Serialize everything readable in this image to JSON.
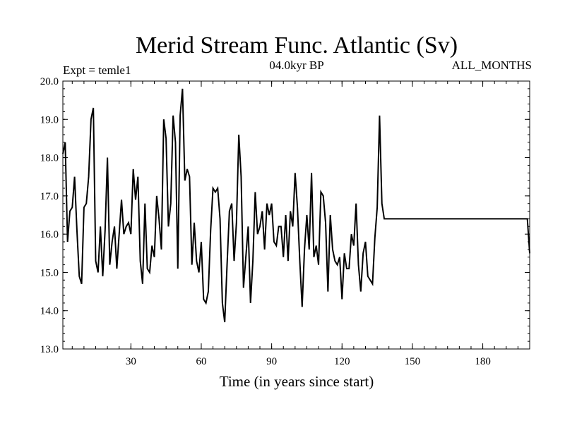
{
  "chart_data": {
    "type": "line",
    "title": "Merid Stream Func. Atlantic (Sv)",
    "subtitle_left": "Expt = temle1",
    "subtitle_center": "04.0kyr BP",
    "subtitle_right": "ALL_MONTHS",
    "xlabel": "Time (in years since start)",
    "ylabel": "",
    "xlim": [
      1,
      200
    ],
    "ylim": [
      13.0,
      20.0
    ],
    "xticks": [
      30,
      60,
      90,
      120,
      150,
      180
    ],
    "xtick_labels": [
      "30",
      "60",
      "90",
      "120",
      "150",
      "180"
    ],
    "yticks": [
      13.0,
      14.0,
      15.0,
      16.0,
      17.0,
      18.0,
      19.0,
      20.0
    ],
    "ytick_labels": [
      "13.0",
      "14.0",
      "15.0",
      "16.0",
      "17.0",
      "18.0",
      "19.0",
      "20.0"
    ],
    "series": [
      {
        "name": "Merid Stream Func. Atlantic",
        "x": [
          1,
          2,
          3,
          4,
          5,
          6,
          7,
          8,
          9,
          10,
          11,
          12,
          13,
          14,
          15,
          16,
          17,
          18,
          19,
          20,
          21,
          22,
          23,
          24,
          25,
          26,
          27,
          28,
          29,
          30,
          31,
          32,
          33,
          34,
          35,
          36,
          37,
          38,
          39,
          40,
          41,
          42,
          43,
          44,
          45,
          46,
          47,
          48,
          49,
          50,
          51,
          52,
          53,
          54,
          55,
          56,
          57,
          58,
          59,
          60,
          61,
          62,
          63,
          64,
          65,
          66,
          67,
          68,
          69,
          70,
          71,
          72,
          73,
          74,
          75,
          76,
          77,
          78,
          79,
          80,
          81,
          82,
          83,
          84,
          85,
          86,
          87,
          88,
          89,
          90,
          91,
          92,
          93,
          94,
          95,
          96,
          97,
          98,
          99,
          100,
          101,
          102,
          103,
          104,
          105,
          106,
          107,
          108,
          109,
          110,
          111,
          112,
          113,
          114,
          115,
          116,
          117,
          118,
          119,
          120,
          121,
          122,
          123,
          124,
          125,
          126,
          127,
          128,
          129,
          130,
          131,
          132,
          133,
          134,
          135,
          136,
          137,
          138,
          139,
          140,
          141,
          142,
          143,
          144,
          145,
          146,
          147,
          148,
          149,
          150,
          151,
          152,
          153,
          154,
          155,
          156,
          157,
          158,
          159,
          160,
          161,
          162,
          163,
          164,
          165,
          166,
          167,
          168,
          169,
          170,
          171,
          172,
          173,
          174,
          175,
          176,
          177,
          178,
          179,
          180,
          181,
          182,
          183,
          184,
          185,
          186,
          187,
          188,
          189,
          190,
          191,
          192,
          193,
          194,
          195,
          196,
          197,
          198,
          199,
          200
        ],
        "values": [
          18.1,
          18.4,
          15.8,
          16.6,
          16.7,
          17.5,
          16.1,
          14.9,
          14.7,
          16.7,
          16.8,
          17.5,
          19.0,
          19.3,
          15.3,
          15.0,
          16.2,
          14.9,
          16.1,
          18.0,
          15.2,
          15.8,
          16.2,
          15.1,
          16.0,
          16.9,
          16.0,
          16.2,
          16.3,
          16.0,
          17.7,
          16.9,
          17.5,
          15.3,
          14.7,
          16.8,
          15.1,
          15.0,
          15.7,
          15.4,
          17.0,
          16.4,
          15.6,
          19.0,
          18.5,
          16.2,
          16.8,
          19.1,
          18.4,
          15.1,
          19.1,
          19.8,
          17.4,
          17.7,
          17.5,
          15.2,
          16.3,
          15.3,
          15.0,
          15.8,
          14.3,
          14.2,
          14.5,
          16.1,
          17.2,
          17.1,
          17.2,
          16.4,
          14.2,
          13.7,
          15.2,
          16.6,
          16.8,
          15.3,
          16.3,
          18.6,
          17.5,
          14.6,
          15.4,
          16.2,
          14.2,
          15.3,
          17.1,
          16.0,
          16.2,
          16.6,
          15.6,
          16.8,
          16.5,
          16.8,
          15.8,
          15.7,
          16.2,
          16.2,
          15.4,
          16.5,
          15.3,
          16.6,
          16.2,
          17.6,
          16.7,
          15.3,
          14.1,
          15.6,
          16.5,
          15.6,
          17.6,
          15.4,
          15.7,
          15.2,
          17.1,
          17.0,
          16.3,
          14.5,
          16.5,
          15.6,
          15.3,
          15.2,
          15.4,
          14.3,
          15.5,
          15.1,
          15.1,
          16.0,
          15.7,
          16.8,
          15.2,
          14.5,
          15.5,
          15.8,
          14.9,
          14.8,
          14.7,
          15.9,
          16.7,
          19.1,
          16.8,
          16.4,
          16.4,
          16.4,
          16.4,
          16.4,
          16.4,
          16.4,
          16.4,
          16.4,
          16.4,
          16.4,
          16.4,
          16.4,
          16.4,
          16.4,
          16.4,
          16.4,
          16.4,
          16.4,
          16.4,
          16.4,
          16.4,
          16.4,
          16.4,
          16.4,
          16.4,
          16.4,
          16.4,
          16.4,
          16.4,
          16.4,
          16.4,
          16.4,
          16.4,
          16.4,
          16.4,
          16.4,
          16.4,
          16.4,
          16.4,
          16.4,
          16.4,
          16.4,
          16.4,
          16.4,
          16.4,
          16.4,
          16.4,
          16.4,
          16.4,
          16.4,
          16.4,
          16.4,
          16.4,
          16.4,
          16.4,
          16.4,
          16.4,
          16.4,
          16.4,
          16.4,
          16.4,
          15.5
        ]
      }
    ]
  }
}
